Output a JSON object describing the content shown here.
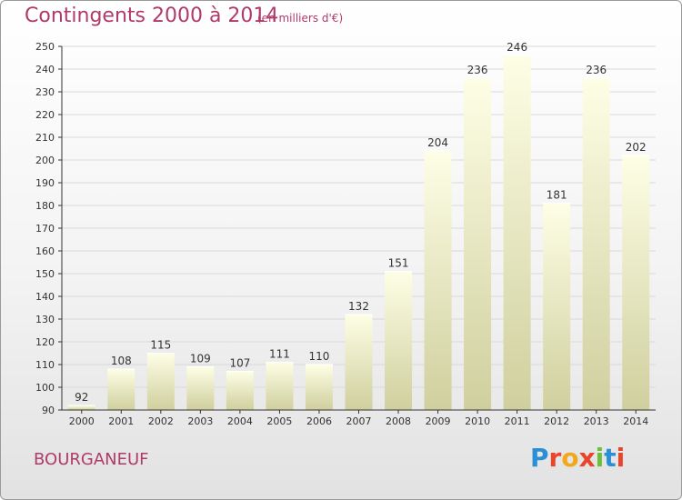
{
  "header": {
    "title": "Contingents 2000 à 2014",
    "subtitle": "(en milliers d'€)"
  },
  "footer": {
    "commune": "BOURGANEUF",
    "logo_text": "Proxiti"
  },
  "colors": {
    "title": "#b03a6a",
    "bar_light": "#fefee0",
    "bar_dark": "#cfcf9e",
    "grid": "#d9d9d9",
    "axis": "#333333"
  },
  "chart_data": {
    "type": "bar",
    "categories": [
      "2000",
      "2001",
      "2002",
      "2003",
      "2004",
      "2005",
      "2006",
      "2007",
      "2008",
      "2009",
      "2010",
      "2011",
      "2012",
      "2013",
      "2014"
    ],
    "values": [
      92,
      108,
      115,
      109,
      107,
      111,
      110,
      132,
      151,
      204,
      236,
      246,
      181,
      236,
      202
    ],
    "yticks": [
      90,
      100,
      110,
      120,
      130,
      140,
      150,
      160,
      170,
      180,
      190,
      200,
      210,
      220,
      230,
      240,
      250
    ],
    "ylim": [
      90,
      250
    ],
    "grid": true,
    "legend": "none"
  }
}
